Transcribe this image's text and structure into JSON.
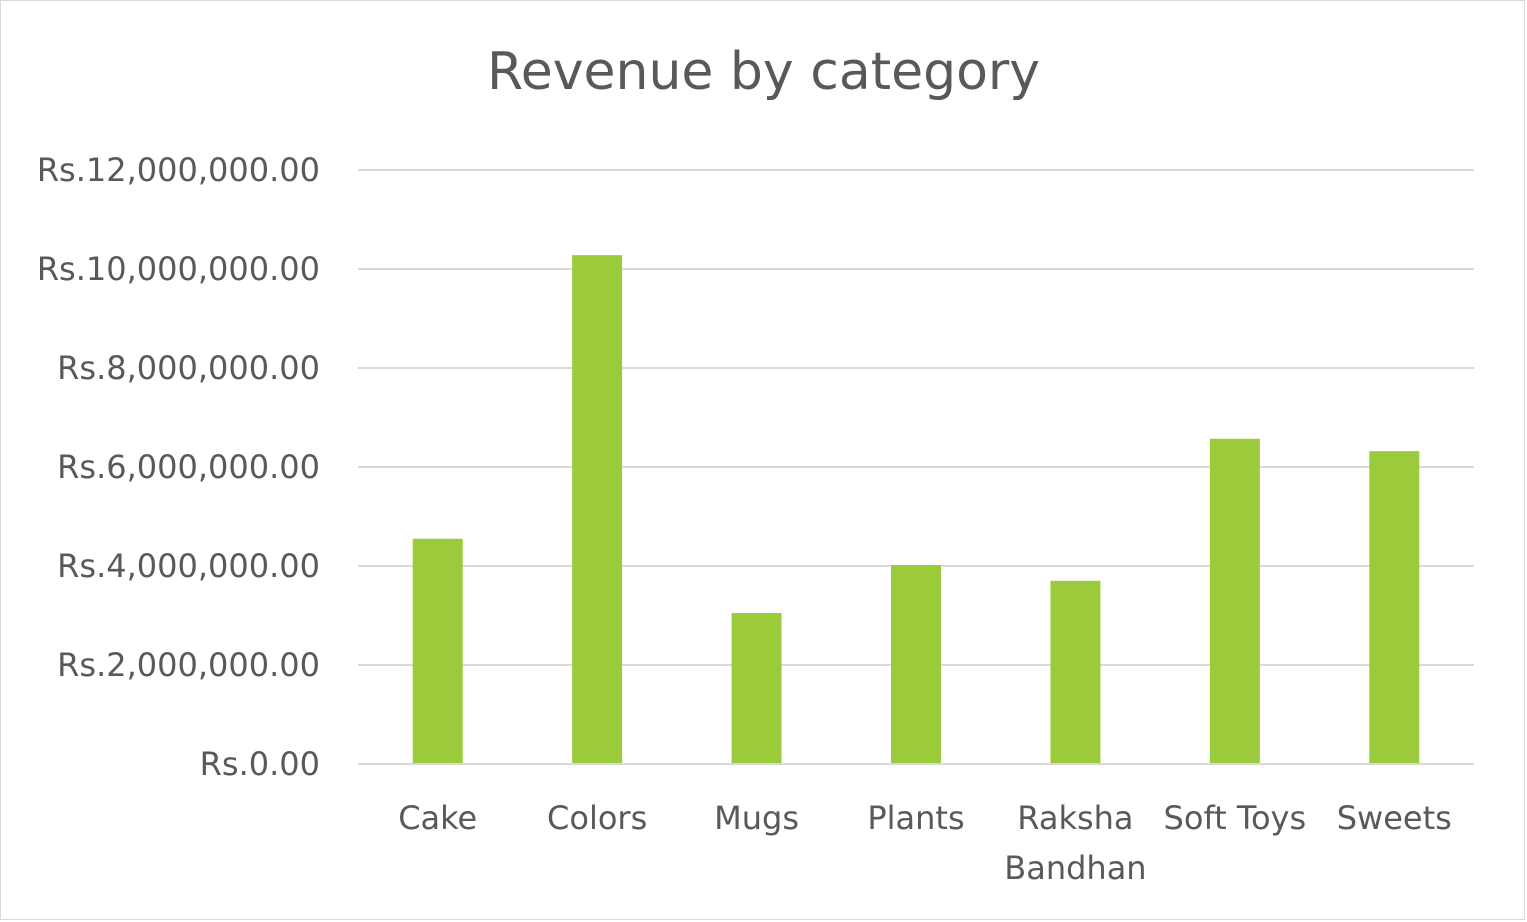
{
  "chart_data": {
    "type": "bar",
    "title": "Revenue by category",
    "xlabel": "",
    "ylabel": "",
    "categories": [
      "Cake",
      "Colors",
      "Mugs",
      "Plants",
      "Raksha Bandhan",
      "Soft Toys",
      "Sweets"
    ],
    "values": [
      4550000,
      10280000,
      3050000,
      4020000,
      3700000,
      6570000,
      6320000
    ],
    "ylim": [
      0,
      12000000
    ],
    "yticks": [
      0,
      2000000,
      4000000,
      6000000,
      8000000,
      10000000,
      12000000
    ],
    "ytick_labels": [
      "Rs.0.00",
      "Rs.2,000,000.00",
      "Rs.4,000,000.00",
      "Rs.6,000,000.00",
      "Rs.8,000,000.00",
      "Rs.10,000,000.00",
      "Rs.12,000,000.00"
    ],
    "grid": true,
    "legend": "none",
    "bar_color": "#9BCB3B",
    "grid_color": "#D9D9D9",
    "text_color": "#595959"
  }
}
